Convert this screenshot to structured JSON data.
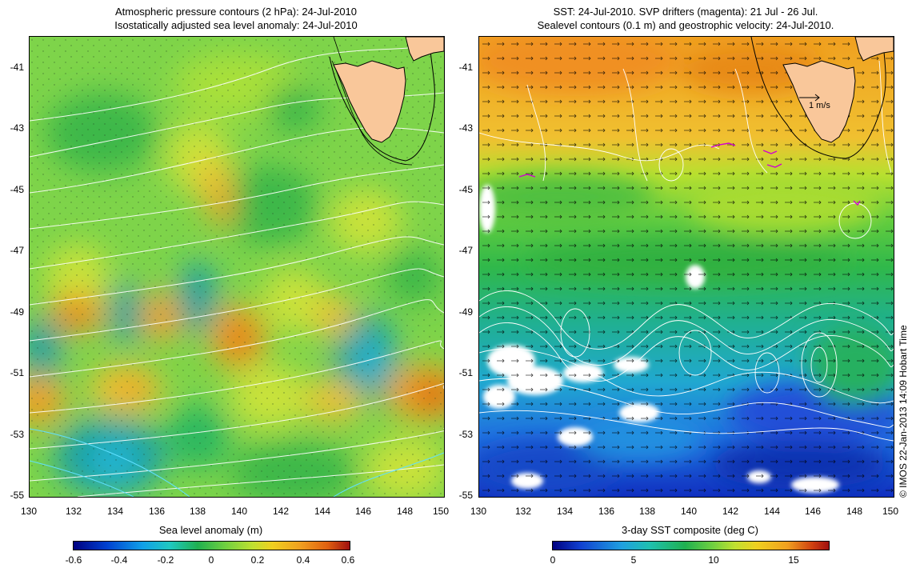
{
  "left": {
    "title_line1": "Atmospheric pressure contours (2 hPa): 24-Jul-2010",
    "title_line2": "Isostatically adjusted sea level anomaly: 24-Jul-2010",
    "colorbar_title": "Sea level anomaly (m)",
    "colorbar_ticks": [
      "-0.6",
      "-0.4",
      "-0.2",
      "0",
      "0.2",
      "0.4",
      "0.6"
    ],
    "colorbar_range": [
      -0.6,
      0.6
    ]
  },
  "right": {
    "title_line1": "SST: 24-Jul-2010. SVP drifters (magenta): 21 Jul - 26 Jul.",
    "title_line2": "Sealevel contours (0.1 m) and geostrophic velocity: 24-Jul-2010.",
    "colorbar_title": "3-day SST composite (deg C)",
    "colorbar_ticks": [
      "0",
      "5",
      "10",
      "15"
    ],
    "colorbar_range": [
      0,
      17
    ],
    "scale_arrow_label": "1 m/s"
  },
  "lat_ticks": [
    "-41",
    "-43",
    "-45",
    "-47",
    "-49",
    "-51",
    "-53",
    "-55"
  ],
  "lon_ticks": [
    "130",
    "132",
    "134",
    "136",
    "138",
    "140",
    "142",
    "144",
    "146",
    "148",
    "150"
  ],
  "map_extent": {
    "lon": [
      130,
      150
    ],
    "lat": [
      -55,
      -40
    ]
  },
  "credit": "© IMOS 22-Jan-2013 14:09 Hobart Time",
  "colors": {
    "land": "#f9c79a",
    "drifter": "#d000d0",
    "contour": "#ffffff"
  }
}
